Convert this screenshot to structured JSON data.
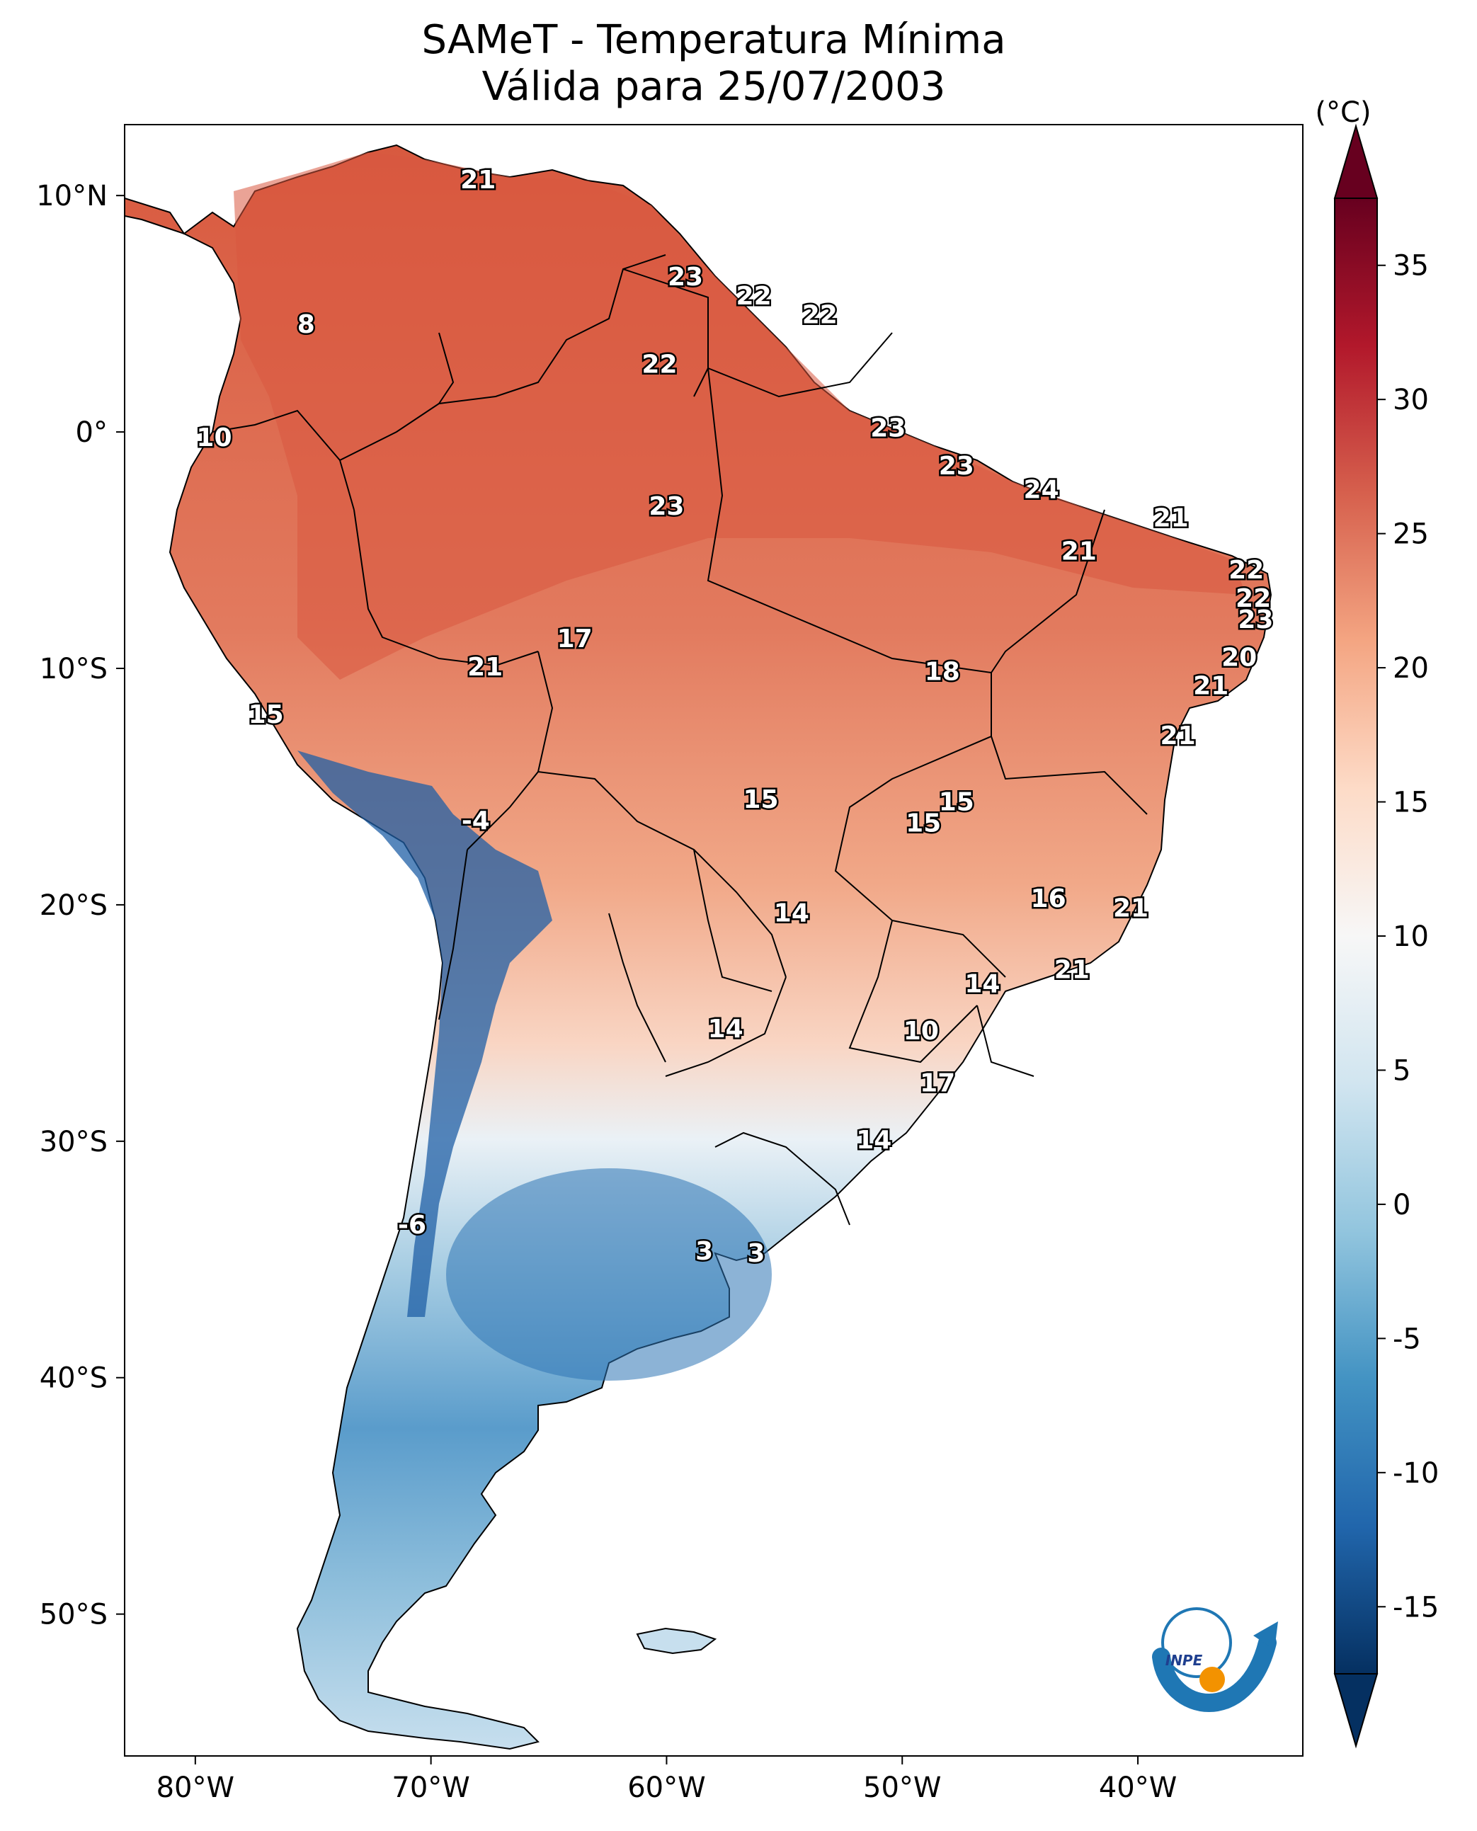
{
  "title_line1": "SAMeT - Temperatura Mínima",
  "title_line2": "Válida para 25/07/2003",
  "units": "(°C)",
  "lon_ticks": [
    "80°W",
    "70°W",
    "60°W",
    "50°W",
    "40°W"
  ],
  "lat_ticks": [
    "10°N",
    "0°",
    "10°S",
    "20°S",
    "30°S",
    "40°S",
    "50°S"
  ],
  "colorbar_ticks": [
    "35",
    "30",
    "25",
    "20",
    "15",
    "10",
    "5",
    "0",
    "-5",
    "-10",
    "-15"
  ],
  "colorbar_colors": [
    "#67001f",
    "#b2182b",
    "#d6604d",
    "#f4a582",
    "#fddbc7",
    "#f7f7f7",
    "#d1e5f0",
    "#92c5de",
    "#4393c3",
    "#2166ac",
    "#053061"
  ],
  "logo_text": "INPE",
  "station_labels": [
    {
      "value": "21",
      "lon": -68.0,
      "lat": 10.6
    },
    {
      "value": "8",
      "lon": -75.3,
      "lat": 4.5
    },
    {
      "value": "23",
      "lon": -59.2,
      "lat": 6.5
    },
    {
      "value": "22",
      "lon": -56.3,
      "lat": 5.7
    },
    {
      "value": "22",
      "lon": -53.5,
      "lat": 4.9
    },
    {
      "value": "22",
      "lon": -60.3,
      "lat": 2.8
    },
    {
      "value": "10",
      "lon": -79.2,
      "lat": -0.3
    },
    {
      "value": "23",
      "lon": -50.6,
      "lat": 0.1
    },
    {
      "value": "23",
      "lon": -47.7,
      "lat": -1.5
    },
    {
      "value": "24",
      "lon": -44.1,
      "lat": -2.5
    },
    {
      "value": "21",
      "lon": -38.6,
      "lat": -3.7
    },
    {
      "value": "23",
      "lon": -60.0,
      "lat": -3.2
    },
    {
      "value": "21",
      "lon": -42.5,
      "lat": -5.1
    },
    {
      "value": "22",
      "lon": -35.4,
      "lat": -5.9
    },
    {
      "value": "22",
      "lon": -35.1,
      "lat": -7.1
    },
    {
      "value": "23",
      "lon": -35.0,
      "lat": -8.0
    },
    {
      "value": "17",
      "lon": -63.9,
      "lat": -8.8
    },
    {
      "value": "21",
      "lon": -67.7,
      "lat": -10.0
    },
    {
      "value": "18",
      "lon": -48.3,
      "lat": -10.2
    },
    {
      "value": "20",
      "lon": -35.7,
      "lat": -9.6
    },
    {
      "value": "15",
      "lon": -77.0,
      "lat": -12.0
    },
    {
      "value": "21",
      "lon": -36.9,
      "lat": -10.8
    },
    {
      "value": "21",
      "lon": -38.3,
      "lat": -12.9
    },
    {
      "value": "15",
      "lon": -56.0,
      "lat": -15.6
    },
    {
      "value": "15",
      "lon": -47.7,
      "lat": -15.7
    },
    {
      "value": "-4",
      "lon": -68.1,
      "lat": -16.5
    },
    {
      "value": "15",
      "lon": -49.1,
      "lat": -16.6
    },
    {
      "value": "16",
      "lon": -43.8,
      "lat": -19.8
    },
    {
      "value": "14",
      "lon": -54.7,
      "lat": -20.4
    },
    {
      "value": "21",
      "lon": -40.3,
      "lat": -20.2
    },
    {
      "value": "21",
      "lon": -42.8,
      "lat": -22.8
    },
    {
      "value": "14",
      "lon": -46.6,
      "lat": -23.4
    },
    {
      "value": "14",
      "lon": -57.5,
      "lat": -25.3
    },
    {
      "value": "10",
      "lon": -49.2,
      "lat": -25.4
    },
    {
      "value": "17",
      "lon": -48.5,
      "lat": -27.6
    },
    {
      "value": "14",
      "lon": -51.2,
      "lat": -30.0
    },
    {
      "value": "-6",
      "lon": -70.8,
      "lat": -33.6
    },
    {
      "value": "3",
      "lon": -58.4,
      "lat": -34.7
    },
    {
      "value": "3",
      "lon": -56.2,
      "lat": -34.8
    }
  ]
}
